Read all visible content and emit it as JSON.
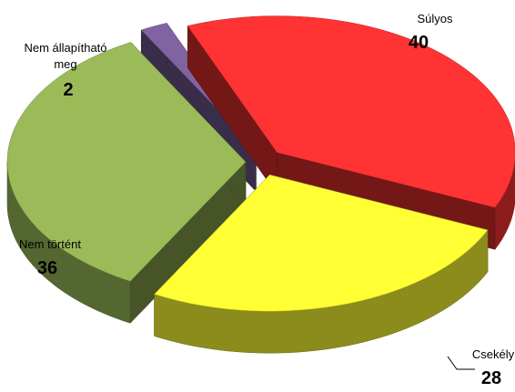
{
  "chart_data": {
    "type": "pie3d",
    "categories": [
      "Súlyos",
      "Csekély",
      "Nem történt",
      "Nem állapítható meg"
    ],
    "values": [
      40,
      28,
      36,
      2
    ],
    "colors": [
      "#ff3333",
      "#ffff33",
      "#9bbb59",
      "#8064a2"
    ]
  }
}
